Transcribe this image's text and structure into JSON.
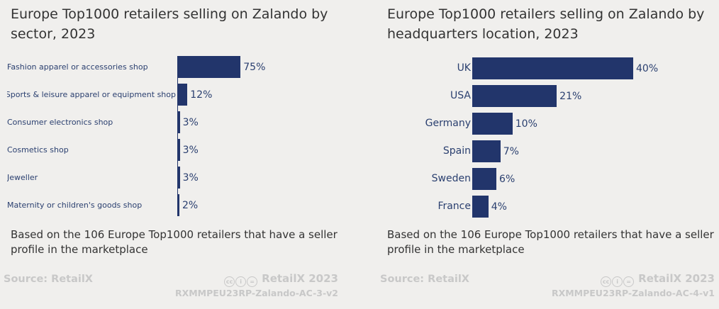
{
  "chart_data": [
    {
      "type": "bar",
      "orientation": "horizontal",
      "title": "Europe Top1000 retailers selling on Zalando by sector, 2023",
      "categories": [
        "Fashion apparel or accessories shop",
        "Sports & leisure apparel or equipment shop",
        "Consumer electronics shop",
        "Cosmetics shop",
        "Jeweller",
        "Maternity or children's goods shop"
      ],
      "values": [
        75,
        12,
        3,
        3,
        3,
        2
      ],
      "value_labels": [
        "75%",
        "12%",
        "3%",
        "3%",
        "3%",
        "2%"
      ],
      "unit": "%",
      "xlim": [
        0,
        100
      ],
      "note": "Based on the 106 Europe Top1000 retailers that have a seller profile in the marketplace",
      "source": "Source: RetailX",
      "brand": "RetailX 2023",
      "code": "RXMMPEU23RP-Zalando-AC-3-v2"
    },
    {
      "type": "bar",
      "orientation": "horizontal",
      "title": "Europe Top1000 retailers selling on Zalando by headquarters location, 2023",
      "categories": [
        "UK",
        "USA",
        "Germany",
        "Spain",
        "Sweden",
        "France"
      ],
      "values": [
        40,
        21,
        10,
        7,
        6,
        4
      ],
      "value_labels": [
        "40%",
        "21%",
        "10%",
        "7%",
        "6%",
        "4%"
      ],
      "unit": "%",
      "xlim": [
        0,
        40
      ],
      "note": "Based on the 106 Europe Top1000 retailers that have a seller profile in the marketplace",
      "source": "Source: RetailX",
      "brand": "RetailX 2023",
      "code": "RXMMPEU23RP-Zalando-AC-4-v1"
    }
  ],
  "colors": {
    "bar": "#22356b",
    "label": "#2a3f6f",
    "footer": "#c8c8c8",
    "background": "#f0efed"
  },
  "icons": [
    "cc-icon",
    "by-icon",
    "nd-icon"
  ]
}
